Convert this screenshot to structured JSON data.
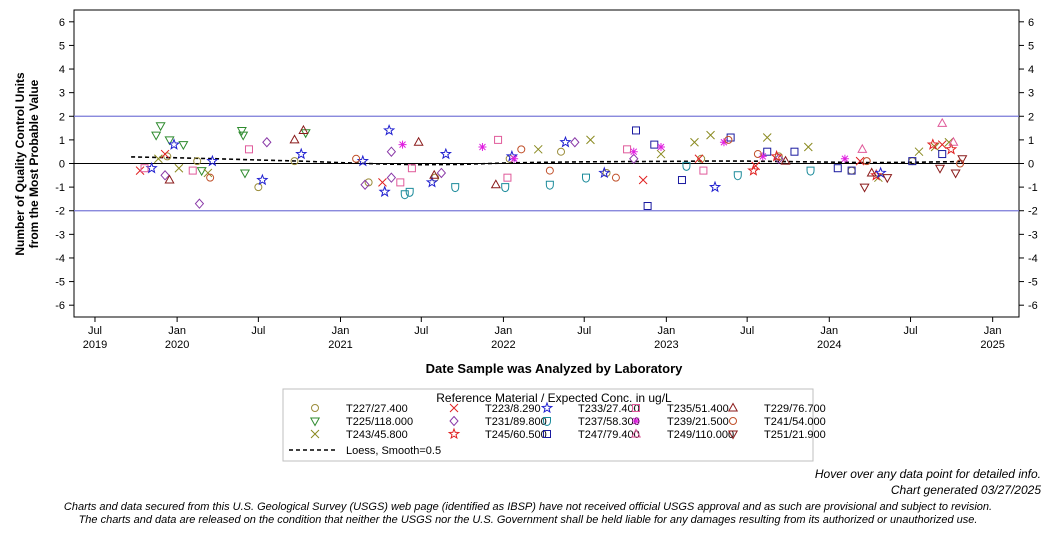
{
  "chart_data": {
    "type": "scatter",
    "ylabel_line1": "Number of Quality Control Units",
    "ylabel_line2": "from the Most Probable Value",
    "xlabel": "Date Sample was Analyzed by Laboratory",
    "ylim": [
      -6.5,
      6.5
    ],
    "y_ticks": [
      -6,
      -5,
      -4,
      -3,
      -2,
      -1,
      0,
      1,
      2,
      3,
      4,
      5,
      6
    ],
    "xlim": [
      "2019-05-15",
      "2025-03-01"
    ],
    "x_ticks": [
      {
        "date": "2019-07-01",
        "line1": "Jul",
        "line2": "2019"
      },
      {
        "date": "2020-01-01",
        "line1": "Jan",
        "line2": "2020"
      },
      {
        "date": "2020-07-01",
        "line1": "Jul",
        "line2": ""
      },
      {
        "date": "2021-01-01",
        "line1": "Jan",
        "line2": "2021"
      },
      {
        "date": "2021-07-01",
        "line1": "Jul",
        "line2": ""
      },
      {
        "date": "2022-01-01",
        "line1": "Jan",
        "line2": "2022"
      },
      {
        "date": "2022-07-01",
        "line1": "Jul",
        "line2": ""
      },
      {
        "date": "2023-01-01",
        "line1": "Jan",
        "line2": "2023"
      },
      {
        "date": "2023-07-01",
        "line1": "Jul",
        "line2": ""
      },
      {
        "date": "2024-01-01",
        "line1": "Jan",
        "line2": "2024"
      },
      {
        "date": "2024-07-01",
        "line1": "Jul",
        "line2": ""
      },
      {
        "date": "2025-01-01",
        "line1": "Jan",
        "line2": "2025"
      }
    ],
    "reference_lines": [
      2,
      -2
    ],
    "zero_line": 0,
    "grid": false,
    "legend_title": "Reference Material / Expected Conc. in ug/L",
    "legend_placement": "bottom",
    "series": [
      {
        "name": "T227/27.400",
        "marker": "circle",
        "color": "#9a8c3a",
        "points": [
          [
            "2019-12-10",
            0.3
          ],
          [
            "2020-02-15",
            0.1
          ],
          [
            "2020-07-01",
            -1.0
          ],
          [
            "2020-09-20",
            0.1
          ],
          [
            "2021-03-05",
            -0.8
          ],
          [
            "2021-08-01",
            -0.6
          ],
          [
            "2022-01-15",
            0.2
          ],
          [
            "2022-05-10",
            0.5
          ],
          [
            "2022-08-20",
            -0.4
          ],
          [
            "2023-03-20",
            0.2
          ],
          [
            "2023-09-10",
            0.3
          ],
          [
            "2024-02-20",
            -0.3
          ],
          [
            "2024-07-05",
            0.1
          ]
        ]
      },
      {
        "name": "T225/118.000",
        "marker": "triangle-down",
        "color": "#2e8b2e",
        "points": [
          [
            "2019-11-15",
            1.2
          ],
          [
            "2019-11-25",
            1.6
          ],
          [
            "2019-12-15",
            1.0
          ],
          [
            "2020-01-15",
            0.8
          ],
          [
            "2020-02-25",
            -0.3
          ],
          [
            "2020-05-25",
            1.4
          ],
          [
            "2020-05-28",
            1.2
          ],
          [
            "2020-06-01",
            -0.4
          ],
          [
            "2020-10-15",
            1.3
          ]
        ]
      },
      {
        "name": "T243/45.800",
        "marker": "x",
        "color": "#8a8a20",
        "points": [
          [
            "2019-11-20",
            0.2
          ],
          [
            "2020-01-05",
            -0.2
          ],
          [
            "2020-03-10",
            -0.4
          ],
          [
            "2022-03-20",
            0.6
          ],
          [
            "2022-07-15",
            1.0
          ],
          [
            "2022-12-20",
            0.4
          ],
          [
            "2023-03-05",
            0.9
          ],
          [
            "2023-04-10",
            1.2
          ],
          [
            "2023-08-15",
            1.1
          ],
          [
            "2023-11-15",
            0.7
          ],
          [
            "2024-04-20",
            -0.6
          ],
          [
            "2024-07-20",
            0.5
          ],
          [
            "2024-08-25",
            0.7
          ],
          [
            "2024-09-25",
            0.9
          ]
        ]
      },
      {
        "name": "T223/8.290",
        "marker": "x",
        "color": "#e02020",
        "points": [
          [
            "2019-10-10",
            -0.3
          ],
          [
            "2019-12-05",
            0.4
          ],
          [
            "2021-04-05",
            -0.8
          ],
          [
            "2022-11-10",
            -0.7
          ],
          [
            "2023-03-15",
            0.2
          ],
          [
            "2023-07-20",
            -0.1
          ],
          [
            "2024-03-10",
            0.1
          ],
          [
            "2024-09-10",
            0.8
          ]
        ]
      },
      {
        "name": "T231/89.800",
        "marker": "diamond",
        "color": "#8a3aa8",
        "points": [
          [
            "2019-12-05",
            -0.5
          ],
          [
            "2020-02-20",
            -1.7
          ],
          [
            "2020-07-20",
            0.9
          ],
          [
            "2021-02-25",
            -0.9
          ],
          [
            "2021-04-25",
            0.5
          ],
          [
            "2021-04-25",
            -0.6
          ],
          [
            "2021-08-15",
            -0.4
          ],
          [
            "2022-06-10",
            0.9
          ],
          [
            "2022-10-20",
            0.2
          ],
          [
            "2023-09-10",
            0.2
          ]
        ]
      },
      {
        "name": "T237/58.300",
        "marker": "shield",
        "color": "#1a8a9a",
        "points": [
          [
            "2021-05-25",
            -1.3
          ],
          [
            "2021-06-05",
            -1.2
          ],
          [
            "2021-09-15",
            -1.0
          ],
          [
            "2022-01-05",
            -1.0
          ],
          [
            "2022-04-15",
            -0.9
          ],
          [
            "2022-07-05",
            -0.6
          ],
          [
            "2023-02-15",
            -0.1
          ],
          [
            "2023-06-10",
            -0.5
          ],
          [
            "2023-11-20",
            -0.3
          ]
        ]
      },
      {
        "name": "T245/60.500",
        "marker": "star",
        "color": "#e02020",
        "points": [
          [
            "2023-07-15",
            -0.3
          ],
          [
            "2023-09-05",
            0.3
          ],
          [
            "2024-04-15",
            -0.5
          ],
          [
            "2024-08-20",
            0.8
          ],
          [
            "2024-09-30",
            0.6
          ]
        ]
      },
      {
        "name": "T233/27.400",
        "marker": "star",
        "color": "#2020d0",
        "points": [
          [
            "2019-11-05",
            -0.2
          ],
          [
            "2019-12-25",
            0.8
          ],
          [
            "2020-03-20",
            0.1
          ],
          [
            "2020-07-10",
            -0.7
          ],
          [
            "2020-10-05",
            0.4
          ],
          [
            "2021-02-20",
            0.1
          ],
          [
            "2021-04-10",
            -1.2
          ],
          [
            "2021-04-20",
            1.4
          ],
          [
            "2021-07-25",
            -0.8
          ],
          [
            "2021-08-25",
            0.4
          ],
          [
            "2022-01-20",
            0.3
          ],
          [
            "2022-05-20",
            0.9
          ],
          [
            "2022-08-15",
            -0.4
          ],
          [
            "2023-04-20",
            -1.0
          ],
          [
            "2024-04-25",
            -0.4
          ]
        ]
      },
      {
        "name": "T247/79.400",
        "marker": "square",
        "color": "#1a1aa0",
        "points": [
          [
            "2022-10-25",
            1.4
          ],
          [
            "2022-11-20",
            -1.8
          ],
          [
            "2022-12-05",
            0.8
          ],
          [
            "2023-02-05",
            -0.7
          ],
          [
            "2023-05-25",
            1.1
          ],
          [
            "2023-08-15",
            0.5
          ],
          [
            "2023-10-15",
            0.5
          ],
          [
            "2024-01-20",
            -0.2
          ],
          [
            "2024-02-20",
            -0.3
          ],
          [
            "2024-07-05",
            0.1
          ],
          [
            "2024-09-10",
            0.4
          ]
        ]
      },
      {
        "name": "T235/51.400",
        "marker": "square",
        "color": "#e05a9a",
        "points": [
          [
            "2019-10-20",
            -0.2
          ],
          [
            "2020-02-05",
            -0.3
          ],
          [
            "2020-06-10",
            0.6
          ],
          [
            "2021-05-15",
            -0.8
          ],
          [
            "2021-06-10",
            -0.2
          ],
          [
            "2021-12-20",
            1.0
          ],
          [
            "2022-01-10",
            -0.6
          ],
          [
            "2022-10-05",
            0.6
          ],
          [
            "2023-03-25",
            -0.3
          ]
        ]
      },
      {
        "name": "T239/21.500",
        "marker": "asterisk",
        "color": "#e020e0",
        "points": [
          [
            "2021-05-20",
            0.8
          ],
          [
            "2021-11-15",
            0.7
          ],
          [
            "2022-01-25",
            0.2
          ],
          [
            "2022-10-20",
            0.5
          ],
          [
            "2022-12-20",
            0.7
          ],
          [
            "2023-05-10",
            0.9
          ],
          [
            "2023-08-05",
            0.3
          ],
          [
            "2024-02-05",
            0.2
          ]
        ]
      },
      {
        "name": "T249/110.000",
        "marker": "triangle-up",
        "color": "#e05a9a",
        "points": [
          [
            "2024-03-15",
            0.6
          ],
          [
            "2024-09-10",
            1.7
          ],
          [
            "2024-10-05",
            0.9
          ]
        ]
      },
      {
        "name": "T229/76.700",
        "marker": "triangle-up",
        "color": "#8a1a1a",
        "points": [
          [
            "2019-12-15",
            -0.7
          ],
          [
            "2020-09-20",
            1.0
          ],
          [
            "2020-10-10",
            1.4
          ],
          [
            "2021-06-25",
            0.9
          ],
          [
            "2021-07-30",
            -0.5
          ],
          [
            "2021-12-15",
            -0.9
          ],
          [
            "2023-09-25",
            0.1
          ],
          [
            "2024-04-05",
            -0.4
          ]
        ]
      },
      {
        "name": "T241/54.000",
        "marker": "circle",
        "color": "#c0502a",
        "points": [
          [
            "2020-03-15",
            -0.6
          ],
          [
            "2021-02-05",
            0.2
          ],
          [
            "2022-02-10",
            0.6
          ],
          [
            "2022-04-15",
            -0.3
          ],
          [
            "2022-09-10",
            -0.6
          ],
          [
            "2023-05-20",
            1.0
          ],
          [
            "2023-07-25",
            0.4
          ],
          [
            "2024-03-25",
            0.1
          ],
          [
            "2024-10-20",
            0.0
          ]
        ]
      },
      {
        "name": "T251/21.900",
        "marker": "triangle-down",
        "color": "#8a1a1a",
        "points": [
          [
            "2024-03-20",
            -1.0
          ],
          [
            "2024-05-10",
            -0.6
          ],
          [
            "2024-09-05",
            -0.2
          ],
          [
            "2024-10-10",
            -0.4
          ],
          [
            "2024-10-25",
            0.2
          ]
        ]
      }
    ],
    "loess": {
      "name": "Loess, Smoothness=0.5",
      "legend_label": "Loess, Smooth=0.5",
      "points": [
        [
          "2019-09-20",
          0.28
        ],
        [
          "2020-01-01",
          0.24
        ],
        [
          "2020-04-01",
          0.2
        ],
        [
          "2020-07-01",
          0.15
        ],
        [
          "2020-10-01",
          0.1
        ],
        [
          "2021-01-01",
          0.04
        ],
        [
          "2021-04-01",
          -0.02
        ],
        [
          "2021-07-01",
          -0.05
        ],
        [
          "2021-10-01",
          -0.04
        ],
        [
          "2022-01-01",
          0.02
        ],
        [
          "2022-04-01",
          0.05
        ],
        [
          "2022-07-01",
          0.07
        ],
        [
          "2022-10-01",
          0.08
        ],
        [
          "2023-01-01",
          0.09
        ],
        [
          "2023-04-01",
          0.1
        ],
        [
          "2023-07-01",
          0.1
        ],
        [
          "2023-10-01",
          0.08
        ],
        [
          "2024-01-01",
          0.06
        ],
        [
          "2024-04-01",
          0.04
        ],
        [
          "2024-07-01",
          0.05
        ],
        [
          "2024-10-20",
          0.08
        ]
      ]
    }
  },
  "notes": {
    "hover": "Hover over any data point for detailed info.",
    "generated": "Chart generated 03/27/2025",
    "disclaimer_line1": "Charts and data secured from this U.S. Geological Survey (USGS) web page (identified as IBSP) have not received official USGS approval and as such are provisional and subject to revision.",
    "disclaimer_line2": "The charts and data are released on the condition that neither the USGS nor the U.S. Government shall be held liable for any damages resulting from its authorized or unauthorized use."
  }
}
